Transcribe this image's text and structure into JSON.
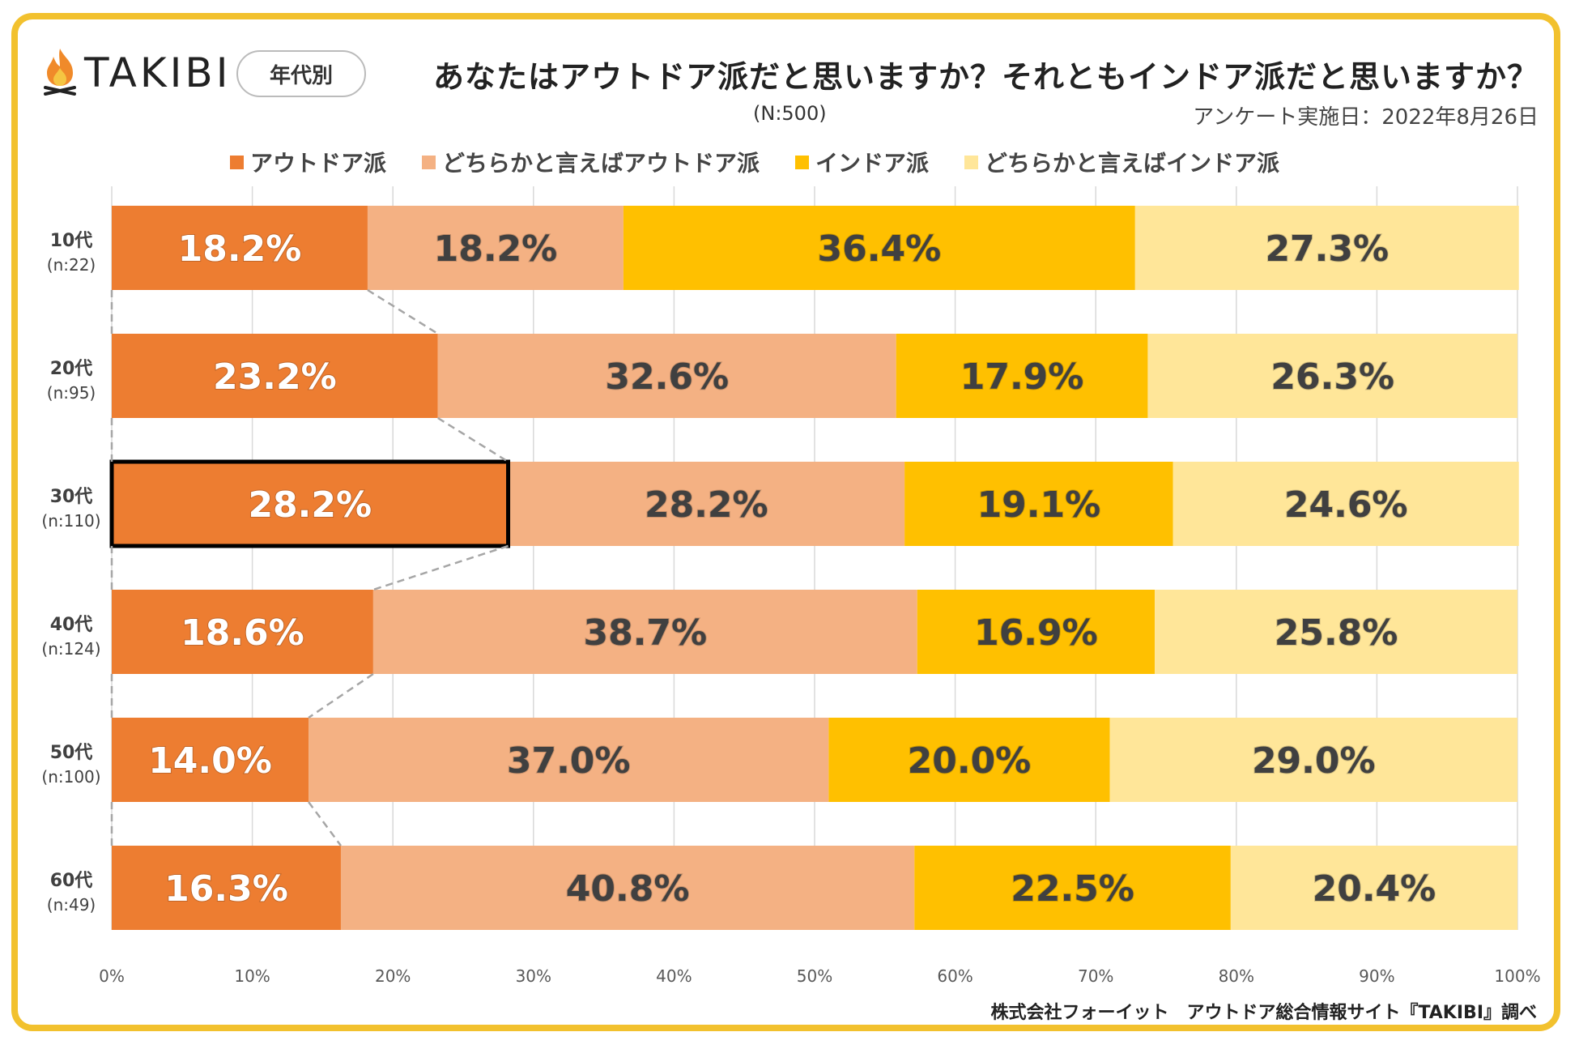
{
  "header": {
    "logo_text": "TAKIBI",
    "badge": "年代別",
    "title": "あなたはアウトドア派だと思いますか？それともインドア派だと思いますか？",
    "sample_size": "(N:500)",
    "survey_date": "アンケート実施日：2022年8月26日"
  },
  "footer": {
    "source": "株式会社フォーイット　アウトドア総合情報サイト『TAKIBI』調べ"
  },
  "chart_data": {
    "type": "bar",
    "orientation": "horizontal",
    "stacked": true,
    "percent_stacked": true,
    "categories": [
      "10代",
      "20代",
      "30代",
      "40代",
      "50代",
      "60代"
    ],
    "category_sublabels": [
      "(n:22)",
      "(n:95)",
      "(n:110)",
      "(n:124)",
      "(n:100)",
      "(n:49)"
    ],
    "series": [
      {
        "name": "アウトドア派",
        "color": "#ED7D31",
        "label_color": "#ffffff",
        "values": [
          18.2,
          23.2,
          28.2,
          18.6,
          14.0,
          16.3
        ]
      },
      {
        "name": "どちらかと言えばアウトドア派",
        "color": "#F4B183",
        "label_color": "#404040",
        "values": [
          18.2,
          32.6,
          28.2,
          38.7,
          37.0,
          40.8
        ]
      },
      {
        "name": "インドア派",
        "color": "#FFC000",
        "label_color": "#404040",
        "values": [
          36.4,
          17.9,
          19.1,
          16.9,
          20.0,
          22.5
        ]
      },
      {
        "name": "どちらかと言えばインドア派",
        "color": "#FFE699",
        "label_color": "#404040",
        "values": [
          27.3,
          26.3,
          24.6,
          25.8,
          29.0,
          20.4
        ]
      }
    ],
    "xlim": [
      0,
      100
    ],
    "x_ticks": [
      "0%",
      "10%",
      "20%",
      "30%",
      "40%",
      "50%",
      "60%",
      "70%",
      "80%",
      "90%",
      "100%"
    ],
    "grid": true,
    "legend_position": "top",
    "highlighted_category": "30代",
    "series_lines": true
  }
}
